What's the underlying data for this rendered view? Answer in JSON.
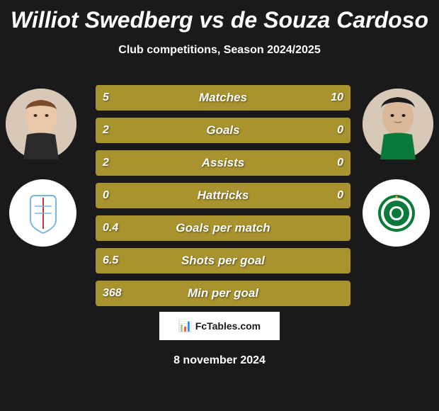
{
  "header": {
    "title": "Williot Swedberg vs de Souza Cardoso",
    "subtitle": "Club competitions, Season 2024/2025"
  },
  "players": {
    "left": {
      "name": "Williot Swedberg",
      "avatar_bg": "#e8d8c8",
      "team_color": "#7ab8d8"
    },
    "right": {
      "name": "de Souza Cardoso",
      "avatar_bg": "#e8d8c8",
      "team_color": "#0a7a3a"
    }
  },
  "stats": [
    {
      "label": "Matches",
      "left_value": "5",
      "right_value": "10",
      "left_pct": 33,
      "right_pct": 67
    },
    {
      "label": "Goals",
      "left_value": "2",
      "right_value": "0",
      "left_pct": 100,
      "right_pct": 0
    },
    {
      "label": "Assists",
      "left_value": "2",
      "right_value": "0",
      "left_pct": 100,
      "right_pct": 0
    },
    {
      "label": "Hattricks",
      "left_value": "0",
      "right_value": "0",
      "left_pct": 50,
      "right_pct": 50
    },
    {
      "label": "Goals per match",
      "left_value": "0.4",
      "right_value": "",
      "left_pct": 100,
      "right_pct": 0
    },
    {
      "label": "Shots per goal",
      "left_value": "6.5",
      "right_value": "",
      "left_pct": 100,
      "right_pct": 0
    },
    {
      "label": "Min per goal",
      "left_value": "368",
      "right_value": "",
      "left_pct": 100,
      "right_pct": 0
    }
  ],
  "colors": {
    "background": "#1a1a1a",
    "bar_fill": "#a8932f",
    "bar_bg": "#3a3a3a",
    "text": "#ffffff"
  },
  "footer": {
    "logo_text": "FcTables.com",
    "date": "8 november 2024"
  }
}
